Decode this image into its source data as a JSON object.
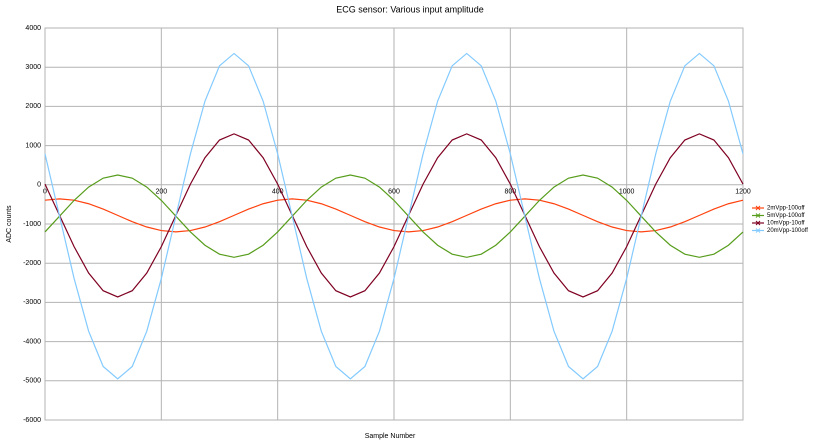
{
  "chart_data": {
    "type": "line",
    "title": "ECG sensor: Various input amplitude",
    "x_label": "Sample Number",
    "y_label": "ADC counts",
    "x": [
      0,
      25,
      50,
      75,
      100,
      125,
      150,
      175,
      200,
      225,
      250,
      275,
      300,
      325,
      350,
      375,
      400,
      425,
      450,
      475,
      500,
      525,
      550,
      575,
      600,
      625,
      650,
      675,
      700,
      725,
      750,
      775,
      800,
      825,
      850,
      875,
      900,
      925,
      950,
      975,
      1000,
      1025,
      1050,
      1075,
      1100,
      1125,
      1150,
      1175,
      1200
    ],
    "xlim": [
      0,
      1200
    ],
    "xticks": [
      0,
      200,
      400,
      600,
      800,
      1000,
      1200
    ],
    "ylim": [
      -6000,
      4000
    ],
    "yticks": [
      -6000,
      -5000,
      -4000,
      -3000,
      -2000,
      -1000,
      0,
      1000,
      2000,
      3000,
      4000
    ],
    "grid": true,
    "legend": "right",
    "series": [
      {
        "name": "2mVpp-100off",
        "color": "#ff420e",
        "values": [
          -392,
          -360,
          -392,
          -483,
          -619,
          -780,
          -941,
          -1077,
          -1168,
          -1200,
          -1168,
          -1077,
          -941,
          -780,
          -619,
          -483,
          -392,
          -360,
          -392,
          -483,
          -619,
          -780,
          -941,
          -1077,
          -1168,
          -1200,
          -1168,
          -1077,
          -941,
          -780,
          -619,
          -483,
          -392,
          -360,
          -392,
          -483,
          -619,
          -780,
          -941,
          -1077,
          -1168,
          -1200,
          -1168,
          -1077,
          -941,
          -780,
          -619,
          -483,
          -392
        ]
      },
      {
        "name": "5mVpp-100off",
        "color": "#579d1c",
        "values": [
          -1202,
          -800,
          -398,
          -58,
          170,
          250,
          170,
          -58,
          -398,
          -800,
          -1202,
          -1542,
          -1770,
          -1850,
          -1770,
          -1542,
          -1202,
          -800,
          -398,
          -58,
          170,
          250,
          170,
          -58,
          -398,
          -800,
          -1202,
          -1542,
          -1770,
          -1850,
          -1770,
          -1542,
          -1202,
          -800,
          -398,
          -58,
          170,
          250,
          170,
          -58,
          -398,
          -800,
          -1202,
          -1542,
          -1770,
          -1850,
          -1770,
          -1542,
          -1202
        ]
      },
      {
        "name": "10mVpp-10off",
        "color": "#7e0021",
        "values": [
          17,
          -780,
          -1577,
          -2251,
          -2702,
          -2860,
          -2702,
          -2251,
          -1577,
          -780,
          17,
          691,
          1142,
          1300,
          1142,
          691,
          17,
          -780,
          -1577,
          -2251,
          -2702,
          -2860,
          -2702,
          -2251,
          -1577,
          -780,
          17,
          691,
          1142,
          1300,
          1142,
          691,
          17,
          -780,
          -1577,
          -2251,
          -2702,
          -2860,
          -2702,
          -2251,
          -1577,
          -780,
          17,
          691,
          1142,
          1300,
          1142,
          691,
          17
        ]
      },
      {
        "name": "20mVpp-100off",
        "color": "#83caff",
        "values": [
          789,
          -800,
          -2389,
          -3734,
          -4635,
          -4950,
          -4635,
          -3734,
          -2389,
          -800,
          789,
          2134,
          3035,
          3350,
          3035,
          2134,
          789,
          -800,
          -2389,
          -3734,
          -4635,
          -4950,
          -4635,
          -3734,
          -2389,
          -800,
          789,
          2134,
          3035,
          3350,
          3035,
          2134,
          789,
          -800,
          -2389,
          -3734,
          -4635,
          -4950,
          -4635,
          -3734,
          -2389,
          -800,
          789,
          2134,
          3035,
          3350,
          3035,
          2134,
          789
        ]
      }
    ]
  }
}
